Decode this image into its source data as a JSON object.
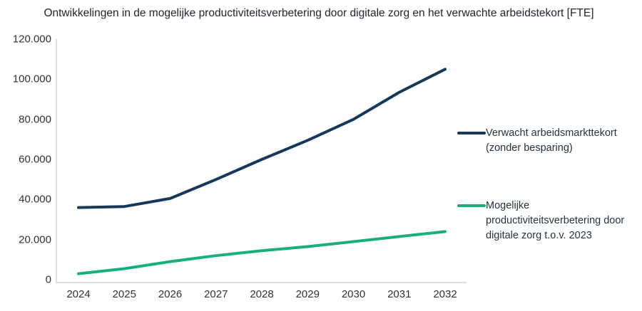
{
  "chart_data": {
    "type": "line",
    "title": "Ontwikkelingen in de mogelijke productiviteitsverbetering door digitale zorg en het verwachte arbeidstekort [FTE]",
    "categories": [
      "2024",
      "2025",
      "2026",
      "2027",
      "2028",
      "2029",
      "2030",
      "2031",
      "2032"
    ],
    "series": [
      {
        "name": "Verwacht arbeidsmarkttekort (zonder besparing)",
        "color": "#14395b",
        "values": [
          36000,
          36500,
          40500,
          50000,
          60000,
          69500,
          80000,
          93500,
          105000
        ]
      },
      {
        "name": "Mogelijke productiviteitsverbetering door digitale zorg t.o.v. 2023",
        "color": "#17b078",
        "values": [
          3000,
          5500,
          9000,
          12000,
          14500,
          16500,
          19000,
          21500,
          24000
        ]
      }
    ],
    "xlabel": "",
    "ylabel": "",
    "ylim": [
      0,
      120000
    ],
    "ytick_step": 20000,
    "ytick_labels": [
      "0",
      "20.000",
      "40.000",
      "60.000",
      "80.000",
      "100.000",
      "120.000"
    ],
    "grid": false,
    "legend_position": "right",
    "axis_color": "#dcdcdc",
    "background_color": "#ffffff"
  }
}
